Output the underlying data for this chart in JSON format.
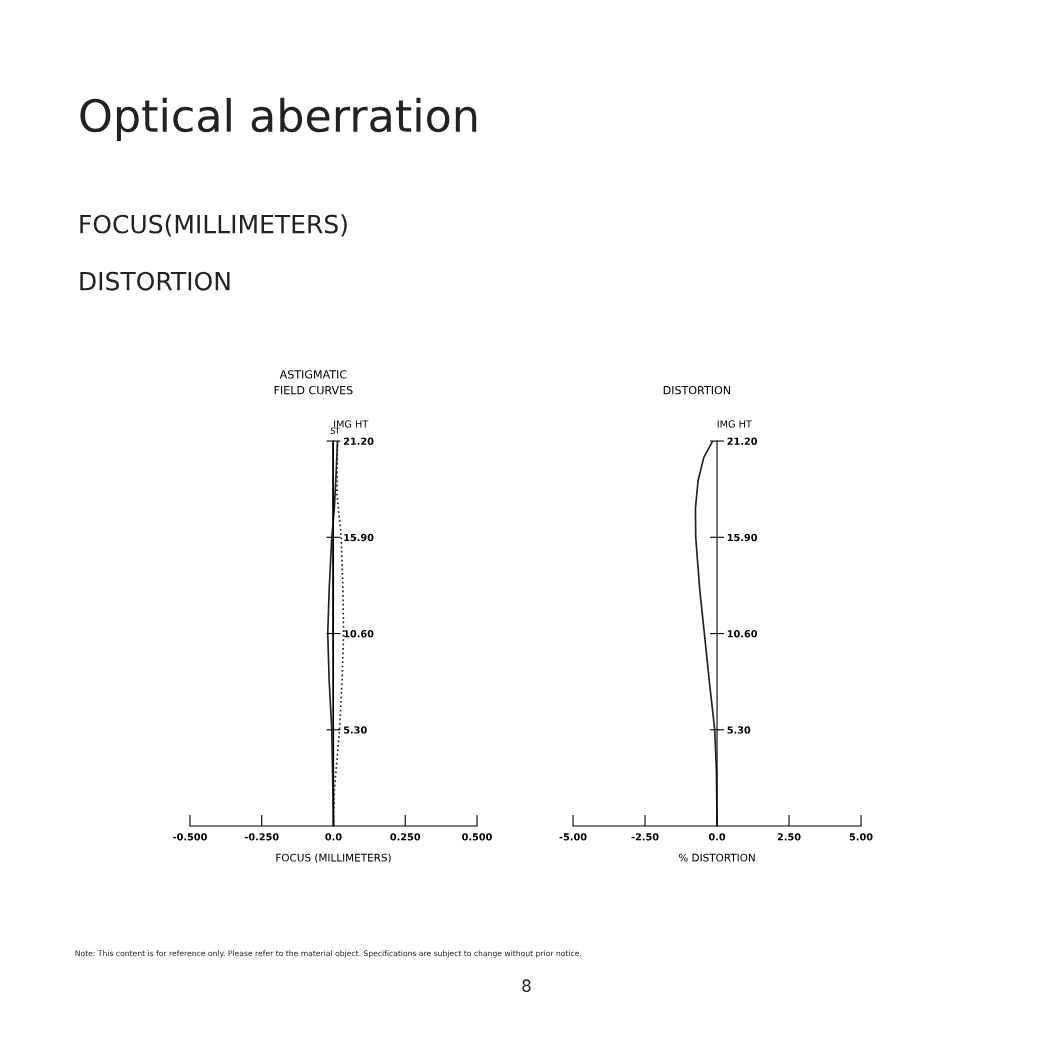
{
  "chart_data": [
    {
      "type": "other",
      "title": "Optical aberration",
      "annotations": [
        "FOCUS(MILLIMETERS)",
        "DISTORTION",
        "Note: This content is for reference only. Please refer to the material object. Specifications are subject to change without prior notice.",
        "8"
      ]
    },
    {
      "type": "line",
      "title": "ASTIGMATIC\nFIELD CURVES",
      "xlabel": "FOCUS (MILLIMETERS)",
      "ylabel": "IMG HT",
      "orientation": "horizontal",
      "series": [
        {
          "name": "S",
          "color": "#222222",
          "line_style": "solid",
          "x": [
            0,
            5.3,
            10.6,
            15.9,
            21.2
          ],
          "values": [
            0,
            -0.001,
            -0.002,
            -0.002,
            -0.002
          ]
        },
        {
          "name": "T",
          "color": "#222222",
          "line_style": "solid",
          "x": [
            0,
            5.3,
            8,
            10.6,
            13,
            15.9,
            17.5,
            19,
            21.2
          ],
          "values": [
            0,
            -0.006,
            -0.015,
            -0.02,
            -0.015,
            -0.006,
            0.003,
            0.008,
            0.014
          ]
        },
        {
          "color": "#222222",
          "line_style": "dotted",
          "x": [
            0,
            2,
            3.6,
            5.3,
            8,
            10.6,
            13,
            15.9,
            18.3,
            21.2
          ],
          "values": [
            0,
            0.003,
            0.012,
            0.021,
            0.03,
            0.035,
            0.033,
            0.027,
            0.012,
            0.014
          ]
        }
      ],
      "xlim": [
        -0.5,
        0.5
      ],
      "xticks": [
        {
          "value": -0.5,
          "label": "-0.500"
        },
        {
          "value": -0.25,
          "label": "-0.250"
        },
        {
          "value": 0,
          "label": "0.0"
        },
        {
          "value": 0.25,
          "label": "0.250"
        },
        {
          "value": 0.5,
          "label": "0.500"
        }
      ],
      "ylim": [
        0,
        21.2
      ],
      "yticks": [
        {
          "value": 5.3,
          "label": "5.30"
        },
        {
          "value": 10.6,
          "label": "10.60"
        },
        {
          "value": 15.9,
          "label": "15.90"
        },
        {
          "value": 21.2,
          "label": "21.20"
        }
      ],
      "grid": false,
      "legend": false
    },
    {
      "type": "line",
      "title": "DISTORTION",
      "xlabel": "% DISTORTION",
      "ylabel": "IMG HT",
      "orientation": "horizontal",
      "series": [
        {
          "color": "#222222",
          "line_style": "solid",
          "x": [
            0,
            3,
            5.3,
            8,
            10.6,
            13,
            15.9,
            17.5,
            19,
            20.3,
            21.2
          ],
          "values": [
            0,
            -0.02,
            -0.08,
            -0.27,
            -0.44,
            -0.6,
            -0.74,
            -0.75,
            -0.66,
            -0.46,
            -0.15
          ]
        }
      ],
      "xlim": [
        -5,
        5
      ],
      "xticks": [
        {
          "value": -5,
          "label": "-5.00"
        },
        {
          "value": -2.5,
          "label": "-2.50"
        },
        {
          "value": 0,
          "label": "0.0"
        },
        {
          "value": 2.5,
          "label": "2.50"
        },
        {
          "value": 5,
          "label": "5.00"
        }
      ],
      "ylim": [
        0,
        21.2
      ],
      "yticks": [
        {
          "value": 5.3,
          "label": "5.30"
        },
        {
          "value": 10.6,
          "label": "10.60"
        },
        {
          "value": 15.9,
          "label": "15.90"
        },
        {
          "value": 21.2,
          "label": "21.20"
        }
      ],
      "grid": false,
      "legend": false
    }
  ]
}
